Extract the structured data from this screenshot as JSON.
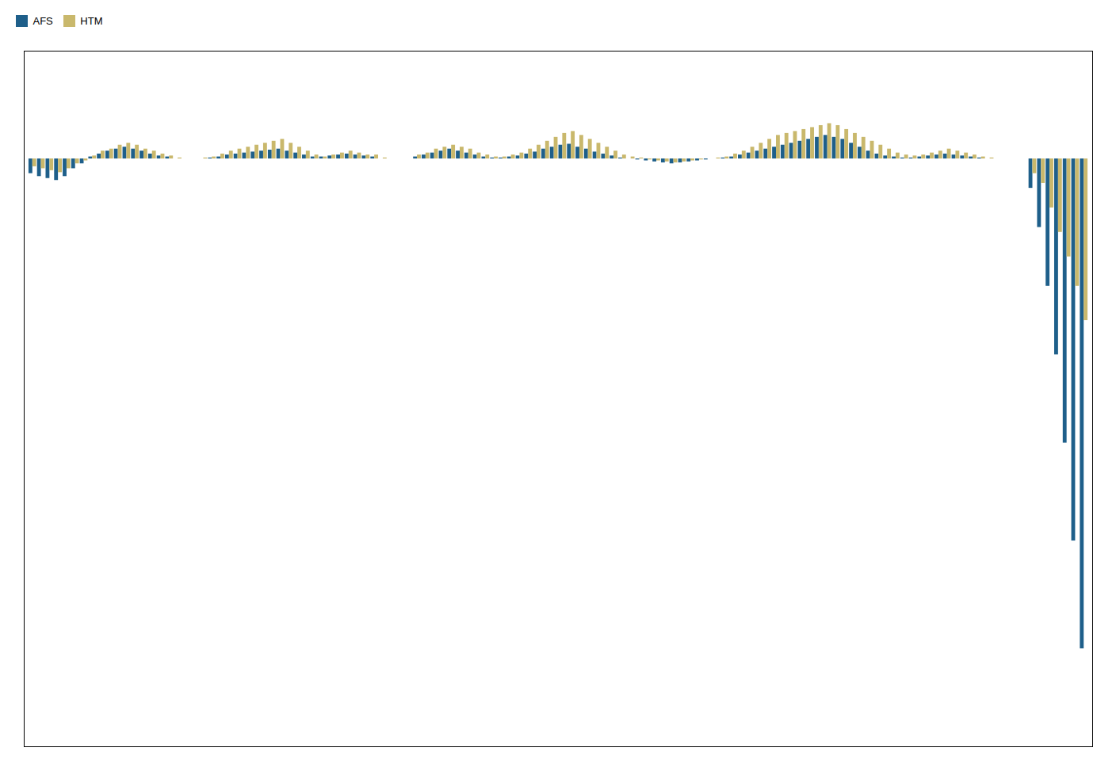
{
  "chart_data": {
    "type": "bar",
    "categories": [
      null,
      null,
      null,
      null,
      null,
      null,
      null,
      null,
      null,
      null,
      null,
      null,
      null,
      null,
      null,
      null,
      null,
      null,
      null,
      null,
      null,
      null,
      null,
      null,
      null,
      null,
      null,
      null,
      null,
      null,
      null,
      null,
      null,
      null,
      null,
      null,
      null,
      null,
      null,
      null,
      null,
      null,
      null,
      null,
      null,
      null,
      null,
      null,
      null,
      null,
      null,
      null,
      null,
      null,
      null,
      null,
      null,
      null,
      null,
      null,
      null,
      null,
      null,
      null,
      null,
      null,
      null,
      null,
      null,
      null,
      null,
      null,
      null,
      null,
      null,
      null,
      null,
      null,
      null,
      null,
      null,
      null,
      null,
      null,
      null,
      null,
      null,
      null,
      null,
      null,
      null,
      null,
      null,
      null,
      null,
      null,
      null,
      null,
      null,
      null,
      null,
      null,
      null,
      null,
      null,
      null,
      null,
      null,
      null,
      null,
      null,
      null,
      null,
      null,
      null,
      null,
      null,
      null,
      null,
      null,
      null,
      null,
      null,
      null
    ],
    "series": [
      {
        "name": "AFS",
        "color": "#1e5f8a",
        "values": [
          -15,
          -18,
          -20,
          -22,
          -18,
          -10,
          -5,
          2,
          5,
          8,
          10,
          12,
          10,
          8,
          5,
          3,
          2,
          0,
          0,
          0,
          0,
          1,
          2,
          4,
          5,
          6,
          7,
          8,
          9,
          10,
          8,
          6,
          4,
          2,
          2,
          3,
          4,
          5,
          4,
          3,
          2,
          0,
          0,
          0,
          0,
          2,
          4,
          6,
          8,
          10,
          8,
          6,
          4,
          2,
          1,
          1,
          2,
          3,
          5,
          7,
          10,
          12,
          14,
          15,
          12,
          10,
          7,
          5,
          3,
          1,
          0,
          -1,
          -2,
          -3,
          -4,
          -5,
          -4,
          -3,
          -2,
          -1,
          0,
          1,
          2,
          4,
          6,
          8,
          10,
          12,
          14,
          16,
          18,
          20,
          22,
          24,
          22,
          20,
          16,
          12,
          8,
          5,
          3,
          2,
          1,
          1,
          2,
          3,
          4,
          5,
          4,
          3,
          2,
          1,
          0,
          0,
          0,
          0,
          0,
          -30,
          -70,
          -130,
          -200,
          -290,
          -390,
          -500
        ]
      },
      {
        "name": "HTM",
        "color": "#c9b86c",
        "values": [
          -8,
          -10,
          -12,
          -14,
          -10,
          -5,
          -2,
          3,
          8,
          10,
          14,
          16,
          14,
          10,
          8,
          5,
          3,
          1,
          0,
          0,
          1,
          2,
          5,
          8,
          10,
          12,
          14,
          16,
          18,
          20,
          16,
          12,
          8,
          4,
          2,
          4,
          6,
          8,
          6,
          4,
          4,
          1,
          0,
          0,
          0,
          4,
          6,
          10,
          12,
          14,
          12,
          10,
          6,
          4,
          2,
          2,
          4,
          6,
          10,
          14,
          18,
          22,
          26,
          28,
          24,
          20,
          16,
          12,
          8,
          4,
          2,
          1,
          -1,
          -2,
          -3,
          -4,
          -3,
          -2,
          -1,
          0,
          1,
          2,
          5,
          8,
          12,
          16,
          20,
          24,
          26,
          28,
          30,
          32,
          34,
          36,
          34,
          30,
          26,
          22,
          18,
          14,
          10,
          6,
          4,
          3,
          4,
          6,
          8,
          10,
          8,
          6,
          4,
          2,
          1,
          0,
          0,
          0,
          0,
          -15,
          -25,
          -50,
          -75,
          -100,
          -130,
          -165
        ]
      }
    ],
    "ylim": [
      -600,
      110
    ],
    "tick_labels": false,
    "grid": false,
    "legend": "upper left"
  }
}
